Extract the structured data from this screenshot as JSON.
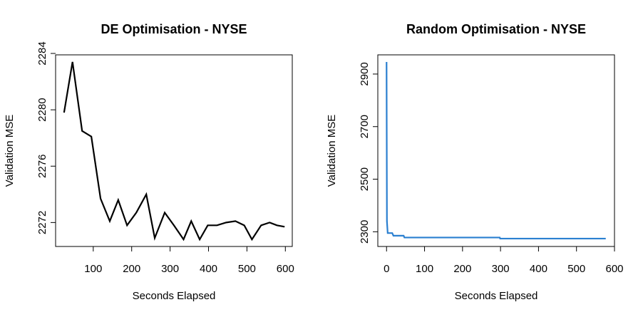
{
  "chart_data": [
    {
      "type": "line",
      "title": "DE Optimisation - NYSE",
      "x_label": "Seconds Elapsed",
      "y_label": "Validation MSE",
      "x": [
        24,
        46,
        71,
        95,
        119,
        143,
        165,
        188,
        212,
        238,
        260,
        286,
        310,
        335,
        355,
        377,
        398,
        422,
        446,
        470,
        493,
        513,
        537,
        559,
        578,
        598
      ],
      "series": [
        {
          "color": "#000000",
          "values": [
            2279.8,
            2283.4,
            2278.5,
            2278.1,
            2273.7,
            2272.1,
            2273.6,
            2271.8,
            2272.7,
            2274.0,
            2270.9,
            2272.7,
            2271.8,
            2270.8,
            2272.1,
            2270.8,
            2271.8,
            2271.8,
            2272.0,
            2272.1,
            2271.8,
            2270.8,
            2271.8,
            2272.0,
            2271.8,
            2271.7
          ]
        }
      ],
      "xlim": [
        2,
        618
      ],
      "ylim": [
        2270.3,
        2283.9
      ],
      "xticks": [
        100,
        200,
        300,
        400,
        500,
        600
      ],
      "yticks": [
        2272,
        2276,
        2280,
        2284
      ]
    },
    {
      "type": "line",
      "title": "Random Optimisation - NYSE",
      "x_label": "Seconds Elapsed",
      "y_label": "Validation MSE",
      "x": [
        0,
        1,
        3,
        15,
        18,
        45,
        47,
        298,
        299,
        577
      ],
      "series": [
        {
          "color": "#2a7fd0",
          "values": [
            2946,
            2340,
            2295,
            2295,
            2285,
            2285,
            2278,
            2278,
            2274,
            2274
          ]
        }
      ],
      "xlim": [
        -23,
        600
      ],
      "ylim": [
        2244,
        2973
      ],
      "xticks": [
        0,
        100,
        200,
        300,
        400,
        500,
        600
      ],
      "yticks": [
        2300,
        2500,
        2700,
        2900
      ]
    }
  ]
}
